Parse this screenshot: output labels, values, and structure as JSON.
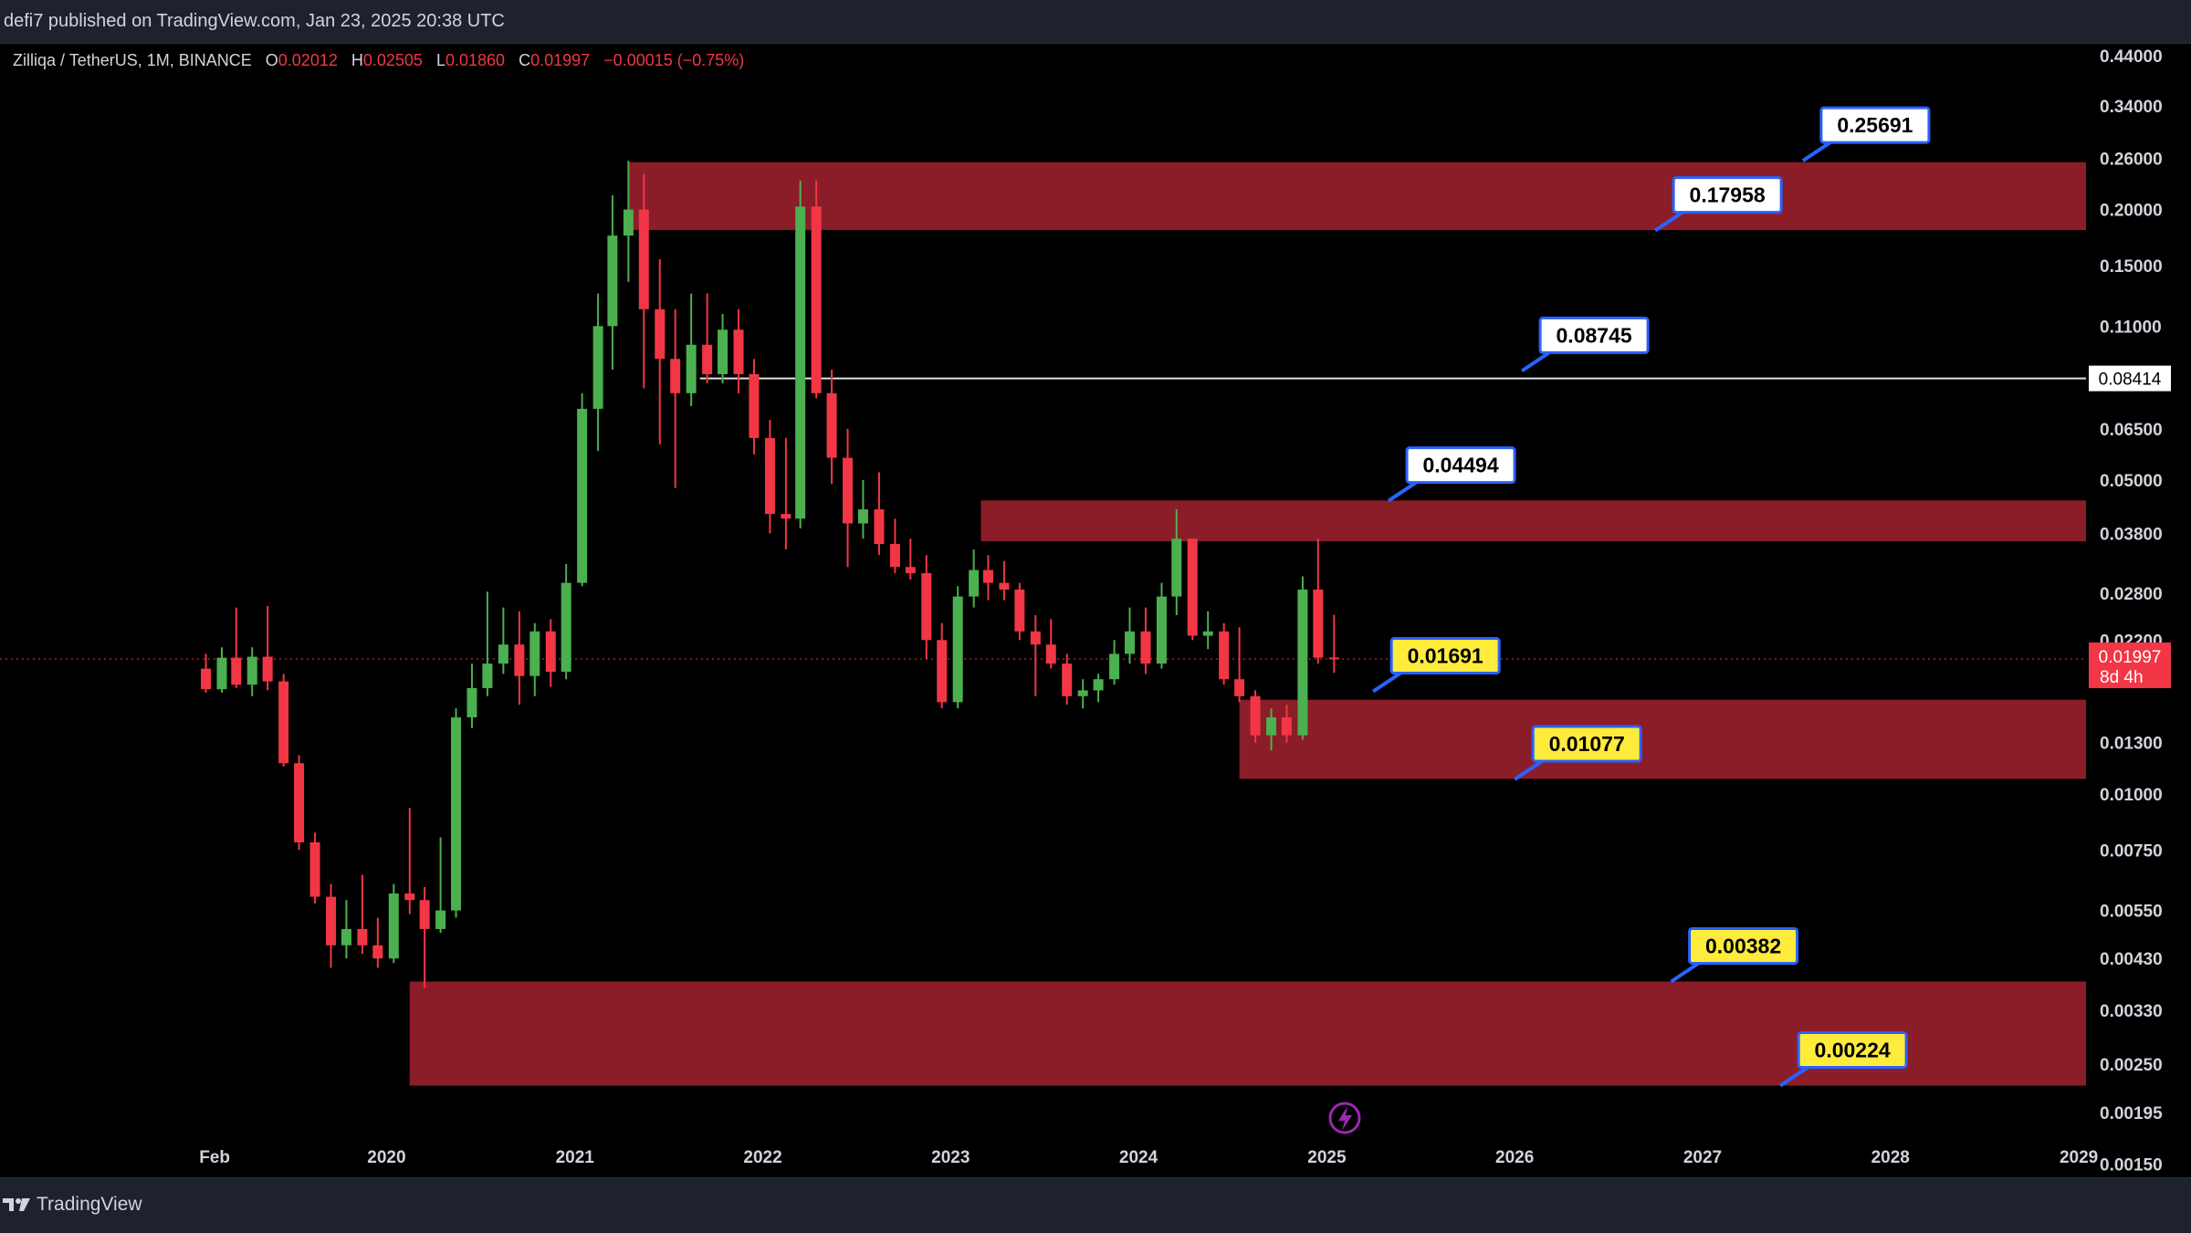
{
  "header": {
    "published": "defi7 published on TradingView.com, Jan 23, 2025 20:38 UTC"
  },
  "legend": {
    "symbol": "Zilliqa / TetherUS, 1M, BINANCE",
    "open_label": "O",
    "open": "0.02012",
    "high_label": "H",
    "high": "0.02505",
    "low_label": "L",
    "low": "0.01860",
    "close_label": "C",
    "close": "0.01997",
    "change": "−0.00015 (−0.75%)"
  },
  "footer": {
    "brand": "TradingView"
  },
  "colors": {
    "up": "#4caf50",
    "down": "#f23645",
    "zone": "#8b1d29",
    "white_callout": "#ffffff",
    "yellow_callout": "#ffeb3b",
    "callout_border": "#2962ff",
    "price_badge": "#f23645"
  },
  "icons": {
    "replay": "lightning-icon",
    "logo": "tradingview-logo-icon"
  },
  "chart_data": {
    "type": "candlestick",
    "scale": "log",
    "y_axis_ticks": [
      "0.44000",
      "0.34000",
      "0.26000",
      "0.20000",
      "0.15000",
      "0.11000",
      "0.06500",
      "0.05000",
      "0.03800",
      "0.02800",
      "0.02200",
      "0.01300",
      "0.01000",
      "0.00750",
      "0.00550",
      "0.00430",
      "0.00330",
      "0.00250",
      "0.00195",
      "0.00150"
    ],
    "ylim": [
      0.0014,
      0.47
    ],
    "x_axis_ticks": [
      "Feb",
      "2020",
      "2021",
      "2022",
      "2023",
      "2024",
      "2025",
      "2026",
      "2027",
      "2028",
      "2029"
    ],
    "x_tick_dates": [
      "2019-02-01",
      "2020-01-01",
      "2021-01-01",
      "2022-01-01",
      "2023-01-01",
      "2024-01-01",
      "2025-01-01",
      "2026-01-01",
      "2027-01-01",
      "2028-01-01",
      "2029-01-01"
    ],
    "xlim": [
      "2017-12-11",
      "2029-08-07"
    ],
    "current_price": {
      "value": 0.01997,
      "label": "0.01997",
      "countdown": "8d 4h"
    },
    "horizontal_line": {
      "value": 0.08414,
      "label": "0.08414",
      "start": "2021-09-01"
    },
    "zones": [
      {
        "top": 0.255,
        "bottom": 0.18,
        "start": "2021-04-15",
        "end": "2029-06-30"
      },
      {
        "top": 0.045,
        "bottom": 0.0365,
        "start": "2023-03-01",
        "end": "2029-06-30"
      },
      {
        "top": 0.0162,
        "bottom": 0.0108,
        "start": "2024-07-15",
        "end": "2029-06-30"
      },
      {
        "top": 0.00382,
        "bottom": 0.00224,
        "start": "2020-02-15",
        "end": "2029-06-30"
      }
    ],
    "callouts": [
      {
        "label": "0.25691",
        "value": 0.25691,
        "date": "2027-07-15",
        "style": "white"
      },
      {
        "label": "0.17958",
        "value": 0.17958,
        "date": "2026-10-01",
        "style": "white"
      },
      {
        "label": "0.08745",
        "value": 0.08745,
        "date": "2026-01-15",
        "style": "white"
      },
      {
        "label": "0.04494",
        "value": 0.04494,
        "date": "2025-05-01",
        "style": "white"
      },
      {
        "label": "0.01691",
        "value": 0.01691,
        "date": "2025-04-01",
        "style": "yellow"
      },
      {
        "label": "0.01077",
        "value": 0.01077,
        "date": "2026-01-01",
        "style": "yellow"
      },
      {
        "label": "0.00382",
        "value": 0.00382,
        "date": "2026-11-01",
        "style": "yellow"
      },
      {
        "label": "0.00224",
        "value": 0.00224,
        "date": "2027-06-01",
        "style": "yellow"
      }
    ],
    "candles": [
      {
        "d": "2019-01",
        "o": 0.019,
        "h": 0.0205,
        "l": 0.0168,
        "c": 0.0171
      },
      {
        "d": "2019-02",
        "o": 0.0171,
        "h": 0.0212,
        "l": 0.0168,
        "c": 0.0201
      },
      {
        "d": "2019-03",
        "o": 0.0201,
        "h": 0.026,
        "l": 0.0172,
        "c": 0.0175
      },
      {
        "d": "2019-04",
        "o": 0.0175,
        "h": 0.0212,
        "l": 0.0165,
        "c": 0.0202
      },
      {
        "d": "2019-05",
        "o": 0.0202,
        "h": 0.0262,
        "l": 0.017,
        "c": 0.0178
      },
      {
        "d": "2019-06",
        "o": 0.0178,
        "h": 0.0185,
        "l": 0.0115,
        "c": 0.0117
      },
      {
        "d": "2019-07",
        "o": 0.0117,
        "h": 0.0122,
        "l": 0.0075,
        "c": 0.0078
      },
      {
        "d": "2019-08",
        "o": 0.0078,
        "h": 0.0082,
        "l": 0.0057,
        "c": 0.0059
      },
      {
        "d": "2019-09",
        "o": 0.0059,
        "h": 0.0063,
        "l": 0.0041,
        "c": 0.0046
      },
      {
        "d": "2019-10",
        "o": 0.0046,
        "h": 0.0058,
        "l": 0.0043,
        "c": 0.005
      },
      {
        "d": "2019-11",
        "o": 0.005,
        "h": 0.0066,
        "l": 0.0044,
        "c": 0.0046
      },
      {
        "d": "2019-12",
        "o": 0.0046,
        "h": 0.0053,
        "l": 0.0041,
        "c": 0.0043
      },
      {
        "d": "2020-01",
        "o": 0.0043,
        "h": 0.0063,
        "l": 0.0042,
        "c": 0.006
      },
      {
        "d": "2020-02",
        "o": 0.006,
        "h": 0.0093,
        "l": 0.0054,
        "c": 0.0058
      },
      {
        "d": "2020-03",
        "o": 0.0058,
        "h": 0.0062,
        "l": 0.0037,
        "c": 0.005
      },
      {
        "d": "2020-04",
        "o": 0.005,
        "h": 0.008,
        "l": 0.0049,
        "c": 0.0055
      },
      {
        "d": "2020-05",
        "o": 0.0055,
        "h": 0.0155,
        "l": 0.0053,
        "c": 0.0148
      },
      {
        "d": "2020-06",
        "o": 0.0148,
        "h": 0.0195,
        "l": 0.014,
        "c": 0.0172
      },
      {
        "d": "2020-07",
        "o": 0.0172,
        "h": 0.0282,
        "l": 0.0165,
        "c": 0.0195
      },
      {
        "d": "2020-08",
        "o": 0.0195,
        "h": 0.026,
        "l": 0.0185,
        "c": 0.0215
      },
      {
        "d": "2020-09",
        "o": 0.0215,
        "h": 0.0255,
        "l": 0.0158,
        "c": 0.0183
      },
      {
        "d": "2020-10",
        "o": 0.0183,
        "h": 0.024,
        "l": 0.0165,
        "c": 0.023
      },
      {
        "d": "2020-11",
        "o": 0.023,
        "h": 0.0245,
        "l": 0.0173,
        "c": 0.0187
      },
      {
        "d": "2020-12",
        "o": 0.0187,
        "h": 0.0325,
        "l": 0.018,
        "c": 0.0295
      },
      {
        "d": "2021-01",
        "o": 0.0295,
        "h": 0.078,
        "l": 0.029,
        "c": 0.072
      },
      {
        "d": "2021-02",
        "o": 0.072,
        "h": 0.13,
        "l": 0.058,
        "c": 0.11
      },
      {
        "d": "2021-03",
        "o": 0.11,
        "h": 0.215,
        "l": 0.088,
        "c": 0.175
      },
      {
        "d": "2021-04",
        "o": 0.175,
        "h": 0.2569,
        "l": 0.138,
        "c": 0.2
      },
      {
        "d": "2021-05",
        "o": 0.2,
        "h": 0.24,
        "l": 0.08,
        "c": 0.12
      },
      {
        "d": "2021-06",
        "o": 0.12,
        "h": 0.155,
        "l": 0.06,
        "c": 0.093
      },
      {
        "d": "2021-07",
        "o": 0.093,
        "h": 0.12,
        "l": 0.048,
        "c": 0.078
      },
      {
        "d": "2021-08",
        "o": 0.078,
        "h": 0.13,
        "l": 0.073,
        "c": 0.1
      },
      {
        "d": "2021-09",
        "o": 0.1,
        "h": 0.13,
        "l": 0.082,
        "c": 0.086
      },
      {
        "d": "2021-10",
        "o": 0.086,
        "h": 0.117,
        "l": 0.082,
        "c": 0.108
      },
      {
        "d": "2021-11",
        "o": 0.108,
        "h": 0.12,
        "l": 0.078,
        "c": 0.086
      },
      {
        "d": "2021-12",
        "o": 0.086,
        "h": 0.093,
        "l": 0.057,
        "c": 0.062
      },
      {
        "d": "2022-01",
        "o": 0.062,
        "h": 0.068,
        "l": 0.038,
        "c": 0.042
      },
      {
        "d": "2022-02",
        "o": 0.042,
        "h": 0.062,
        "l": 0.035,
        "c": 0.041
      },
      {
        "d": "2022-03",
        "o": 0.041,
        "h": 0.232,
        "l": 0.039,
        "c": 0.203
      },
      {
        "d": "2022-04",
        "o": 0.203,
        "h": 0.232,
        "l": 0.076,
        "c": 0.078
      },
      {
        "d": "2022-05",
        "o": 0.078,
        "h": 0.088,
        "l": 0.049,
        "c": 0.056
      },
      {
        "d": "2022-06",
        "o": 0.056,
        "h": 0.065,
        "l": 0.032,
        "c": 0.04
      },
      {
        "d": "2022-07",
        "o": 0.04,
        "h": 0.05,
        "l": 0.037,
        "c": 0.043
      },
      {
        "d": "2022-08",
        "o": 0.043,
        "h": 0.052,
        "l": 0.034,
        "c": 0.036
      },
      {
        "d": "2022-09",
        "o": 0.036,
        "h": 0.041,
        "l": 0.031,
        "c": 0.032
      },
      {
        "d": "2022-10",
        "o": 0.032,
        "h": 0.037,
        "l": 0.03,
        "c": 0.031
      },
      {
        "d": "2022-11",
        "o": 0.031,
        "h": 0.034,
        "l": 0.02,
        "c": 0.022
      },
      {
        "d": "2022-12",
        "o": 0.022,
        "h": 0.024,
        "l": 0.0155,
        "c": 0.016
      },
      {
        "d": "2023-01",
        "o": 0.016,
        "h": 0.029,
        "l": 0.0155,
        "c": 0.0275
      },
      {
        "d": "2023-02",
        "o": 0.0275,
        "h": 0.035,
        "l": 0.026,
        "c": 0.0315
      },
      {
        "d": "2023-03",
        "o": 0.0315,
        "h": 0.034,
        "l": 0.027,
        "c": 0.0295
      },
      {
        "d": "2023-04",
        "o": 0.0295,
        "h": 0.033,
        "l": 0.027,
        "c": 0.0285
      },
      {
        "d": "2023-05",
        "o": 0.0285,
        "h": 0.0295,
        "l": 0.022,
        "c": 0.023
      },
      {
        "d": "2023-06",
        "o": 0.023,
        "h": 0.025,
        "l": 0.0165,
        "c": 0.0215
      },
      {
        "d": "2023-07",
        "o": 0.0215,
        "h": 0.0245,
        "l": 0.019,
        "c": 0.0195
      },
      {
        "d": "2023-08",
        "o": 0.0195,
        "h": 0.0205,
        "l": 0.0158,
        "c": 0.0165
      },
      {
        "d": "2023-09",
        "o": 0.0165,
        "h": 0.018,
        "l": 0.0155,
        "c": 0.017
      },
      {
        "d": "2023-10",
        "o": 0.017,
        "h": 0.0185,
        "l": 0.016,
        "c": 0.018
      },
      {
        "d": "2023-11",
        "o": 0.018,
        "h": 0.022,
        "l": 0.0175,
        "c": 0.0205
      },
      {
        "d": "2023-12",
        "o": 0.0205,
        "h": 0.026,
        "l": 0.0195,
        "c": 0.023
      },
      {
        "d": "2024-01",
        "o": 0.023,
        "h": 0.026,
        "l": 0.0185,
        "c": 0.0195
      },
      {
        "d": "2024-02",
        "o": 0.0195,
        "h": 0.0295,
        "l": 0.019,
        "c": 0.0275
      },
      {
        "d": "2024-03",
        "o": 0.0275,
        "h": 0.043,
        "l": 0.025,
        "c": 0.037
      },
      {
        "d": "2024-04",
        "o": 0.037,
        "h": 0.037,
        "l": 0.022,
        "c": 0.0225
      },
      {
        "d": "2024-05",
        "o": 0.0225,
        "h": 0.0255,
        "l": 0.021,
        "c": 0.023
      },
      {
        "d": "2024-06",
        "o": 0.023,
        "h": 0.024,
        "l": 0.0175,
        "c": 0.018
      },
      {
        "d": "2024-07",
        "o": 0.018,
        "h": 0.0235,
        "l": 0.016,
        "c": 0.0165
      },
      {
        "d": "2024-08",
        "o": 0.0165,
        "h": 0.017,
        "l": 0.013,
        "c": 0.0135
      },
      {
        "d": "2024-09",
        "o": 0.0135,
        "h": 0.0155,
        "l": 0.0125,
        "c": 0.0148
      },
      {
        "d": "2024-10",
        "o": 0.0148,
        "h": 0.0158,
        "l": 0.013,
        "c": 0.0135
      },
      {
        "d": "2024-11",
        "o": 0.0135,
        "h": 0.0305,
        "l": 0.0132,
        "c": 0.0285
      },
      {
        "d": "2024-12",
        "o": 0.0285,
        "h": 0.037,
        "l": 0.0195,
        "c": 0.0201
      },
      {
        "d": "2025-01",
        "o": 0.02012,
        "h": 0.02505,
        "l": 0.0186,
        "c": 0.01997
      }
    ]
  }
}
